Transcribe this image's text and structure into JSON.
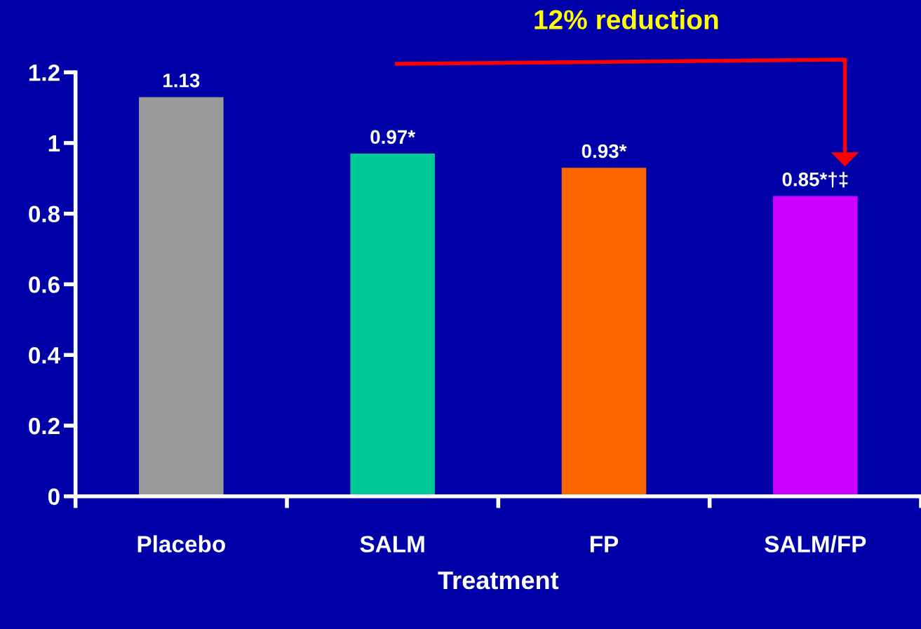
{
  "chart_data": {
    "type": "bar",
    "xlabel": "Treatment",
    "categories": [
      "Placebo",
      "SALM",
      "FP",
      "SALM/FP"
    ],
    "values": [
      1.13,
      0.97,
      0.93,
      0.85
    ],
    "colors": [
      "#9a9a9a",
      "#00c896",
      "#ff6600",
      "#cc00ff"
    ],
    "value_labels": [
      "1.13",
      "0.97*",
      "0.93*",
      "0.85*†‡"
    ],
    "ylim": [
      0,
      1.2
    ],
    "yticks": [
      0,
      0.2,
      0.4,
      0.6,
      0.8,
      1,
      1.2
    ],
    "annotations": [
      "12% reduction"
    ],
    "grid": false
  }
}
